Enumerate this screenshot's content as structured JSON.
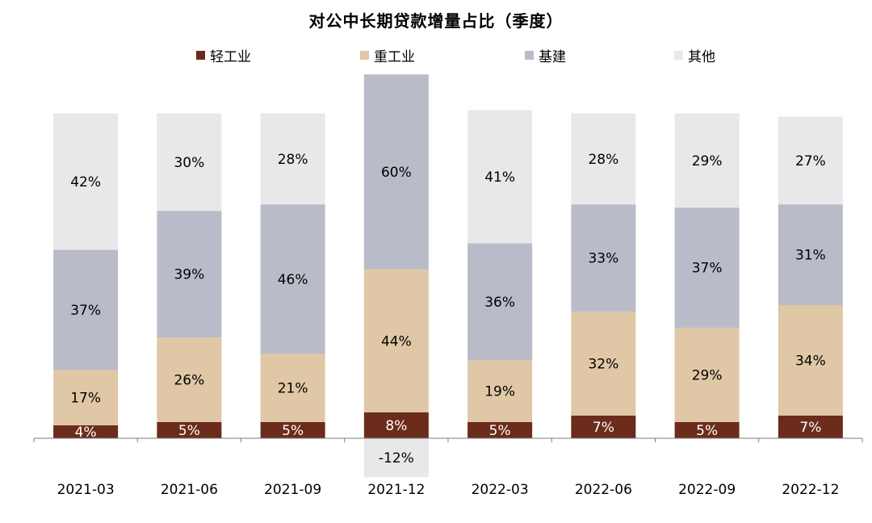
{
  "chart_data": {
    "type": "bar",
    "stacked": true,
    "title": "对公中长期贷款增量占比（季度）",
    "legend_position": "top",
    "grid": false,
    "categories": [
      "2021-03",
      "2021-06",
      "2021-09",
      "2021-12",
      "2022-03",
      "2022-06",
      "2022-09",
      "2022-12"
    ],
    "series": [
      {
        "name": "轻工业",
        "color": "#6b2c1c",
        "values": [
          4,
          5,
          5,
          8,
          5,
          7,
          5,
          7
        ]
      },
      {
        "name": "重工业",
        "color": "#e0c7a5",
        "values": [
          17,
          26,
          21,
          44,
          19,
          32,
          29,
          34
        ]
      },
      {
        "name": "基建",
        "color": "#b9bcc8",
        "values": [
          37,
          39,
          46,
          60,
          36,
          33,
          37,
          31
        ]
      },
      {
        "name": "其他",
        "color": "#e8e8ea",
        "values": [
          42,
          30,
          28,
          -12,
          41,
          28,
          29,
          27
        ]
      }
    ],
    "data_labels": [
      [
        "4%",
        "5%",
        "5%",
        "8%",
        "5%",
        "7%",
        "5%",
        "7%"
      ],
      [
        "17%",
        "26%",
        "21%",
        "44%",
        "19%",
        "32%",
        "29%",
        "34%"
      ],
      [
        "37%",
        "39%",
        "46%",
        "60%",
        "36%",
        "33%",
        "37%",
        "31%"
      ],
      [
        "42%",
        "30%",
        "28%",
        "-12%",
        "41%",
        "28%",
        "29%",
        "27%"
      ]
    ],
    "ylim": [
      -12,
      112
    ]
  }
}
